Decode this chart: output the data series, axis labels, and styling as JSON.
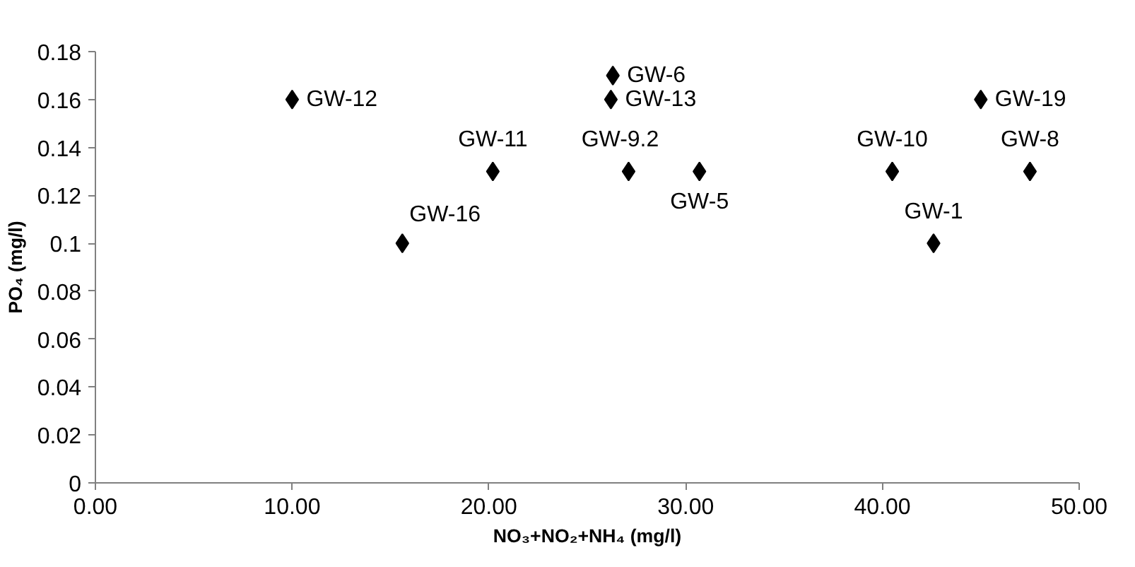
{
  "chart_data": {
    "type": "scatter",
    "xlabel": "NO₃+NO₂+NH₄ (mg/l)",
    "ylabel": "PO₄ (mg/l)",
    "x": [
      10.0,
      15.6,
      20.2,
      26.3,
      26.2,
      27.1,
      30.7,
      40.5,
      42.6,
      45.0,
      47.5
    ],
    "series": [
      {
        "color": "#000000",
        "values": [
          0.16,
          0.1,
          0.13,
          0.17,
          0.16,
          0.13,
          0.13,
          0.13,
          0.1,
          0.16,
          0.13
        ]
      }
    ],
    "marker": "diamond",
    "grid": false,
    "xlim": [
      0,
      50
    ],
    "ylim": [
      0,
      0.18
    ],
    "xticks": [
      {
        "value": 0,
        "label": "0.00"
      },
      {
        "value": 10,
        "label": "10.00"
      },
      {
        "value": 20,
        "label": "20.00"
      },
      {
        "value": 30,
        "label": "30.00"
      },
      {
        "value": 40,
        "label": "40.00"
      },
      {
        "value": 50,
        "label": "50.00"
      }
    ],
    "yticks": [
      0,
      0.02,
      0.04,
      0.06,
      0.08,
      0.1,
      0.12,
      0.14,
      0.16,
      0.18
    ],
    "annotations": [
      {
        "text": "GW-12",
        "x": 10.0,
        "y": 0.16
      },
      {
        "text": "GW-16",
        "x": 15.6,
        "y": 0.1
      },
      {
        "text": "GW-11",
        "x": 20.2,
        "y": 0.13
      },
      {
        "text": "GW-6",
        "x": 26.3,
        "y": 0.17
      },
      {
        "text": "GW-13",
        "x": 26.2,
        "y": 0.16
      },
      {
        "text": "GW-9.2",
        "x": 27.1,
        "y": 0.13
      },
      {
        "text": "GW-5",
        "x": 30.7,
        "y": 0.13
      },
      {
        "text": "GW-10",
        "x": 40.5,
        "y": 0.13
      },
      {
        "text": "GW-1",
        "x": 42.6,
        "y": 0.1
      },
      {
        "text": "GW-19",
        "x": 45.0,
        "y": 0.16
      },
      {
        "text": "GW-8",
        "x": 47.5,
        "y": 0.13
      }
    ]
  }
}
